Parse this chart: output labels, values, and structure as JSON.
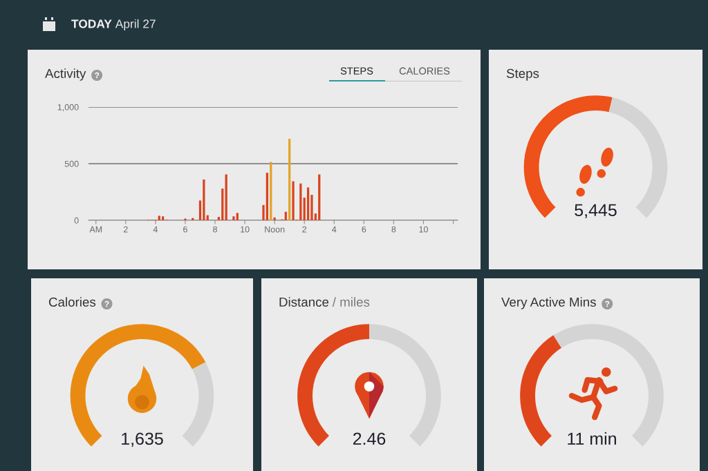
{
  "chart_data": [
    {
      "type": "other",
      "title": "TODAY",
      "subtitle": "April 27"
    },
    {
      "type": "bar",
      "title": "Activity",
      "annotations": [
        "STEPS",
        "CALORIES"
      ],
      "categories": [
        "AM",
        null,
        null,
        null,
        null,
        null,
        null,
        null,
        "2",
        null,
        null,
        null,
        null,
        null,
        null,
        null,
        "4",
        null,
        null,
        null,
        null,
        null,
        null,
        null,
        "6",
        null,
        null,
        null,
        null,
        null,
        null,
        null,
        "8",
        null,
        null,
        null,
        null,
        null,
        null,
        null,
        "10",
        null,
        null,
        null,
        null,
        null,
        null,
        null,
        "Noon",
        null,
        null,
        null,
        null,
        null,
        null,
        null,
        "2",
        null,
        null,
        null,
        null,
        null,
        null,
        null,
        "4",
        null,
        null,
        null,
        null,
        null,
        null,
        null,
        "6",
        null,
        null,
        null,
        null,
        null,
        null,
        null,
        "8",
        null,
        null,
        null,
        null,
        null,
        null,
        null,
        "10",
        null,
        null,
        null,
        null,
        null,
        null,
        null
      ],
      "values": [
        null,
        null,
        null,
        null,
        null,
        null,
        null,
        null,
        null,
        null,
        null,
        null,
        null,
        null,
        5,
        5,
        5,
        40,
        35,
        5,
        null,
        null,
        null,
        null,
        15,
        null,
        20,
        null,
        175,
        360,
        45,
        null,
        null,
        30,
        280,
        405,
        null,
        35,
        65,
        null,
        null,
        null,
        null,
        null,
        null,
        135,
        420,
        515,
        25,
        null,
        8,
        75,
        720,
        345,
        6,
        325,
        200,
        290,
        225,
        60,
        405,
        null,
        null,
        null,
        null,
        null,
        null,
        null,
        null,
        null,
        null,
        null,
        null,
        null,
        null,
        null,
        null,
        null,
        null,
        null,
        null,
        null,
        null,
        null,
        null,
        null,
        null,
        null,
        null,
        null,
        null,
        null,
        null,
        null,
        null,
        null
      ],
      "colors": [
        null,
        null,
        null,
        null,
        null,
        null,
        null,
        null,
        null,
        null,
        null,
        null,
        null,
        null,
        "#d9431e",
        "#d9431e",
        "#d9431e",
        "#d9431e",
        "#d9431e",
        "#d9431e",
        null,
        null,
        null,
        null,
        "#d9431e",
        null,
        "#d9431e",
        null,
        "#d9431e",
        "#d9431e",
        "#d9431e",
        null,
        null,
        "#d9431e",
        "#d9431e",
        "#d9431e",
        null,
        "#d9431e",
        "#d9431e",
        null,
        null,
        null,
        null,
        null,
        null,
        "#d9431e",
        "#d9431e",
        "#e3a326",
        "#d9431e",
        null,
        "#d9431e",
        "#d9431e",
        "#e3a326",
        "#d9431e",
        "#d9431e",
        "#d9431e",
        "#d9431e",
        "#d9431e",
        "#d9431e",
        "#d9431e",
        "#d9431e",
        null,
        null,
        null,
        null,
        null,
        null,
        null,
        null,
        null,
        null,
        null,
        null,
        null,
        null,
        null,
        null,
        null,
        null,
        null,
        null,
        null,
        null,
        null,
        null,
        null,
        null,
        null,
        null,
        null,
        null,
        null,
        null,
        null,
        null,
        null
      ],
      "ylim": [
        0,
        1000
      ],
      "yticks": [
        0,
        500,
        {
          "value": 1000,
          "label": "1,000"
        }
      ],
      "grid": "y"
    },
    {
      "type": "donut",
      "title": "Steps",
      "categories": [
        null,
        null
      ],
      "values": [
        55,
        45
      ],
      "colors": [
        "#ee5119",
        "#d4d4d4"
      ],
      "annotations": [
        "5,445"
      ]
    },
    {
      "type": "donut",
      "title": "Calories",
      "categories": [
        null,
        null
      ],
      "values": [
        73,
        27
      ],
      "colors": [
        "#e98b12",
        "#d4d4d4"
      ],
      "annotations": [
        "1,635"
      ]
    },
    {
      "type": "donut",
      "title": "Distance",
      "subtitle": "/ miles",
      "categories": [
        null,
        null
      ],
      "values": [
        50,
        50
      ],
      "colors": [
        "#e0461b",
        "#d4d4d4"
      ],
      "annotations": [
        "2.46"
      ]
    },
    {
      "type": "donut",
      "title": "Very Active Mins",
      "categories": [
        null,
        null
      ],
      "values": [
        38,
        62
      ],
      "colors": [
        "#e0461b",
        "#d4d4d4"
      ],
      "annotations": [
        "11 min"
      ]
    }
  ]
}
